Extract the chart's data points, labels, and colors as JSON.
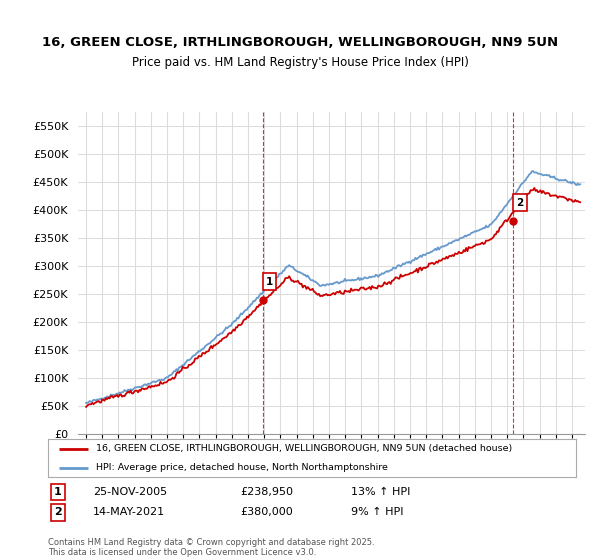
{
  "title_line1": "16, GREEN CLOSE, IRTHLINGBOROUGH, WELLINGBOROUGH, NN9 5UN",
  "title_line2": "Price paid vs. HM Land Registry's House Price Index (HPI)",
  "legend_entry1": "16, GREEN CLOSE, IRTHLINGBOROUGH, WELLINGBOROUGH, NN9 5UN (detached house)",
  "legend_entry2": "HPI: Average price, detached house, North Northamptonshire",
  "annotation1_label": "1",
  "annotation1_date": "25-NOV-2005",
  "annotation1_price": "£238,950",
  "annotation1_hpi": "13% ↑ HPI",
  "annotation2_label": "2",
  "annotation2_date": "14-MAY-2021",
  "annotation2_price": "£380,000",
  "annotation2_hpi": "9% ↑ HPI",
  "footer": "Contains HM Land Registry data © Crown copyright and database right 2025.\nThis data is licensed under the Open Government Licence v3.0.",
  "red_color": "#cc0000",
  "blue_color": "#6699cc",
  "background_color": "#ffffff",
  "grid_color": "#dddddd",
  "ylim": [
    0,
    575000
  ],
  "yticks": [
    0,
    50000,
    100000,
    150000,
    200000,
    250000,
    300000,
    350000,
    400000,
    450000,
    500000,
    550000
  ],
  "ytick_labels": [
    "£0",
    "£50K",
    "£100K",
    "£150K",
    "£200K",
    "£250K",
    "£300K",
    "£350K",
    "£400K",
    "£450K",
    "£500K",
    "£550K"
  ],
  "sale1_x": 2005.9,
  "sale1_y": 238950,
  "sale2_x": 2021.37,
  "sale2_y": 380000,
  "xmin": 1994.5,
  "xmax": 2025.8,
  "xticks": [
    1995,
    1996,
    1997,
    1998,
    1999,
    2000,
    2001,
    2002,
    2003,
    2004,
    2005,
    2006,
    2007,
    2008,
    2009,
    2010,
    2011,
    2012,
    2013,
    2014,
    2015,
    2016,
    2017,
    2018,
    2019,
    2020,
    2021,
    2022,
    2023,
    2024,
    2025
  ]
}
